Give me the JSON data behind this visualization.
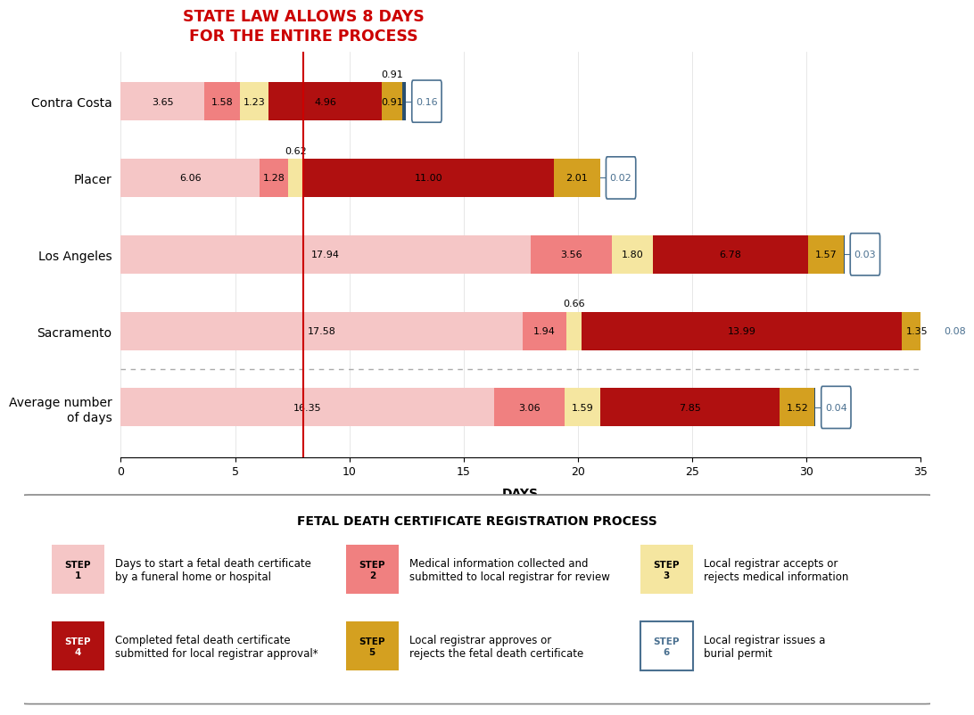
{
  "categories": [
    "Contra Costa",
    "Placer",
    "Los Angeles",
    "Sacramento",
    "Average number\nof days"
  ],
  "steps": [
    {
      "label": "Step1",
      "values": [
        3.65,
        6.06,
        17.94,
        17.58,
        16.35
      ],
      "color": "#f5c6c6"
    },
    {
      "label": "Step2",
      "values": [
        1.58,
        1.28,
        3.56,
        1.94,
        3.06
      ],
      "color": "#f08080"
    },
    {
      "label": "Step3",
      "values": [
        1.23,
        0.62,
        1.8,
        0.66,
        1.59
      ],
      "color": "#f5e6a0"
    },
    {
      "label": "Step4",
      "values": [
        4.96,
        11.0,
        6.78,
        13.99,
        7.85
      ],
      "color": "#b01010"
    },
    {
      "label": "Step5",
      "values": [
        0.91,
        2.01,
        1.57,
        1.35,
        1.52
      ],
      "color": "#d4a020"
    },
    {
      "label": "Step6",
      "values": [
        0.16,
        0.02,
        0.03,
        0.08,
        0.04
      ],
      "color": "#dce8f0"
    }
  ],
  "state_law_day": 8,
  "xlim": [
    0,
    35
  ],
  "xticks": [
    0,
    5,
    10,
    15,
    20,
    25,
    30,
    35
  ],
  "xlabel": "DAYS",
  "title_line1": "STATE LAW ALLOWS 8 DAYS",
  "title_line2": "FOR THE ENTIRE PROCESS",
  "title_color": "#cc0000",
  "step6_border_color": "#4a7090",
  "step6_text_color": "#4a7090",
  "bar_height": 0.5,
  "above_label_items": [
    {
      "cat_idx": 0,
      "step_idx": 4,
      "label": "0.91"
    },
    {
      "cat_idx": 1,
      "step_idx": 2,
      "label": "0.62"
    },
    {
      "cat_idx": 3,
      "step_idx": 2,
      "label": "0.66"
    }
  ],
  "legend_title": "FETAL DEATH CERTIFICATE REGISTRATION PROCESS",
  "legend_items": [
    {
      "step": "STEP\n1",
      "color": "#f5c6c6",
      "border": null,
      "text_color": "black",
      "text": "Days to start a fetal death certificate\nby a funeral home or hospital"
    },
    {
      "step": "STEP\n2",
      "color": "#f08080",
      "border": null,
      "text_color": "black",
      "text": "Medical information collected and\nsubmitted to local registrar for review"
    },
    {
      "step": "STEP\n3",
      "color": "#f5e6a0",
      "border": null,
      "text_color": "black",
      "text": "Local registrar accepts or\nrejects medical information"
    },
    {
      "step": "STEP\n4",
      "color": "#b01010",
      "border": null,
      "text_color": "white",
      "text": "Completed fetal death certificate\nsubmitted for local registrar approval*"
    },
    {
      "step": "STEP\n5",
      "color": "#d4a020",
      "border": null,
      "text_color": "black",
      "text": "Local registrar approves or\nrejects the fetal death certificate"
    },
    {
      "step": "STEP\n6",
      "color": "#ffffff",
      "border": "#4a7090",
      "text_color": "#4a7090",
      "text": "Local registrar issues a\nburial permit"
    }
  ]
}
